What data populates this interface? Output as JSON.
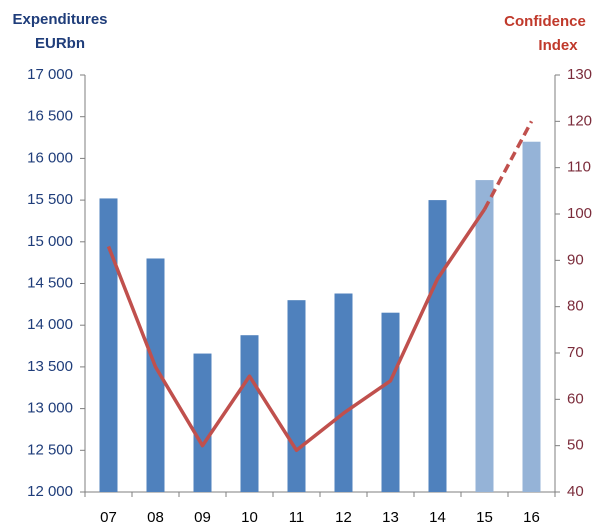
{
  "chart_data": {
    "type": "bar_line",
    "y_label": [
      "Expenditures",
      "EURbn"
    ],
    "y2_label": [
      "Confidence",
      "Index"
    ],
    "categories": [
      "07",
      "08",
      "09",
      "10",
      "11",
      "12",
      "13",
      "14",
      "15",
      "16"
    ],
    "series": [
      {
        "type": "bar",
        "colors": [
          "#4f81bd",
          "#4f81bd",
          "#4f81bd",
          "#4f81bd",
          "#4f81bd",
          "#4f81bd",
          "#4f81bd",
          "#4f81bd",
          "#95b3d7",
          "#95b3d7"
        ],
        "values": [
          15520,
          14800,
          13660,
          13880,
          14300,
          14380,
          14150,
          15500,
          15740,
          16200
        ]
      },
      {
        "type": "line",
        "axis": "y2",
        "color": "#c0504d",
        "dashed_from": 8,
        "values": [
          93,
          67,
          50,
          65,
          49,
          57,
          64,
          86,
          101,
          120
        ]
      }
    ],
    "ylim": [
      12000,
      17000
    ],
    "yticks": [
      {
        "value": 12000,
        "label": "12 000"
      },
      {
        "value": 12500,
        "label": "12 500"
      },
      {
        "value": 13000,
        "label": "13 000"
      },
      {
        "value": 13500,
        "label": "13 500"
      },
      {
        "value": 14000,
        "label": "14 000"
      },
      {
        "value": 14500,
        "label": "14 500"
      },
      {
        "value": 15000,
        "label": "15 000"
      },
      {
        "value": 15500,
        "label": "15 500"
      },
      {
        "value": 16000,
        "label": "16 000"
      },
      {
        "value": 16500,
        "label": "16 500"
      },
      {
        "value": 17000,
        "label": "17 000"
      }
    ],
    "y2lim": [
      40,
      130
    ],
    "y2ticks": [
      40,
      50,
      60,
      70,
      80,
      90,
      100,
      110,
      120,
      130
    ],
    "y_label_color": "#1f3d7a",
    "y2_label_color": "#c0392b"
  }
}
